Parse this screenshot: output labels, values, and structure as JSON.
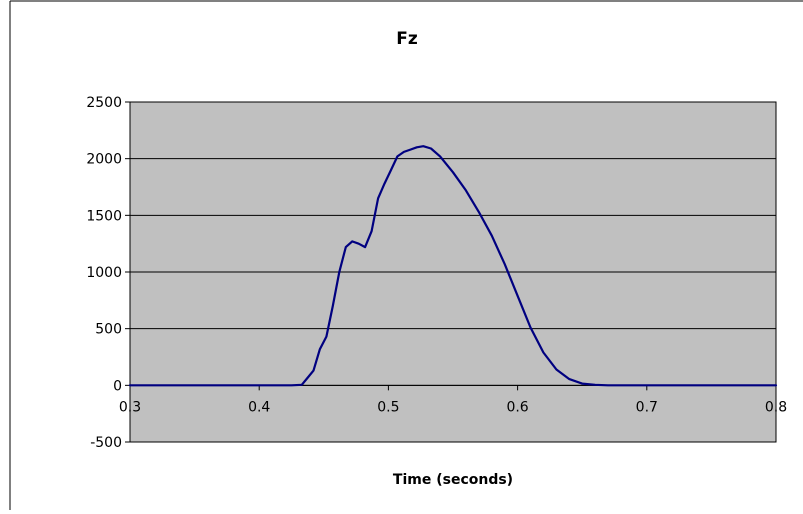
{
  "chart_data": {
    "type": "line",
    "title": "Fz",
    "xlabel": "Time (seconds)",
    "ylabel": "",
    "xlim": [
      0.3,
      0.8
    ],
    "ylim": [
      -500,
      2500
    ],
    "xticks": [
      "0.3",
      "0.4",
      "0.5",
      "0.6",
      "0.7",
      "0.8"
    ],
    "yticks": [
      "-500",
      "0",
      "500",
      "1000",
      "1500",
      "2000",
      "2500"
    ],
    "grid": "horizontal",
    "legend": "none",
    "colors": {
      "plot_background": "#c0c0c0",
      "line": "#000080",
      "grid": "#000000",
      "frame": "#000000"
    },
    "series": [
      {
        "x": [
          0.3,
          0.35,
          0.4,
          0.425,
          0.433,
          0.437,
          0.442,
          0.447,
          0.452,
          0.457,
          0.462,
          0.467,
          0.472,
          0.477,
          0.482,
          0.487,
          0.492,
          0.497,
          0.502,
          0.507,
          0.512,
          0.517,
          0.522,
          0.527,
          0.533,
          0.54,
          0.55,
          0.56,
          0.57,
          0.58,
          0.59,
          0.6,
          0.61,
          0.62,
          0.63,
          0.64,
          0.65,
          0.66,
          0.67,
          0.7,
          0.75,
          0.8
        ],
        "y": [
          0,
          0,
          0,
          0,
          5,
          60,
          130,
          320,
          430,
          700,
          1000,
          1220,
          1270,
          1250,
          1220,
          1360,
          1650,
          1780,
          1900,
          2020,
          2060,
          2080,
          2100,
          2110,
          2090,
          2020,
          1880,
          1720,
          1530,
          1320,
          1070,
          790,
          510,
          290,
          140,
          55,
          15,
          5,
          0,
          0,
          0,
          0
        ]
      }
    ]
  }
}
